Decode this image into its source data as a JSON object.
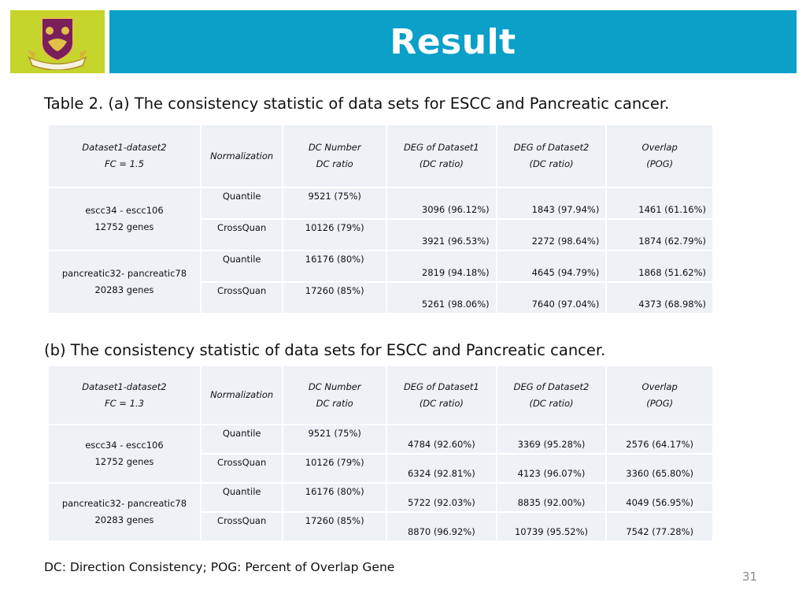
{
  "slide": {
    "title": "Result",
    "page_number": "31",
    "logo": {
      "icon": "university-crest-icon",
      "bg_color": "#c5d52b"
    },
    "title_bar_color": "#0aa0c8"
  },
  "table_a": {
    "caption": "Table 2. (a) The consistency statistic of data sets for ESCC and Pancreatic cancer.",
    "headers": [
      {
        "line1": "Dataset1-dataset2",
        "line2": "FC = 1.5"
      },
      {
        "line1": "Normalization",
        "line2": ""
      },
      {
        "line1": "DC Number",
        "line2": "DC ratio"
      },
      {
        "line1": "DEG of Dataset1",
        "line2": "(DC ratio)"
      },
      {
        "line1": "DEG of Dataset2",
        "line2": "(DC ratio)"
      },
      {
        "line1": "Overlap",
        "line2": "(POG)"
      }
    ],
    "groups": [
      {
        "dataset_line1": "escc34 - escc106",
        "dataset_line2": "12752 genes",
        "rows": [
          {
            "normalization": "Quantile",
            "dc": "9521 (75%)",
            "deg1": "3096 (96.12%)",
            "deg2": "1843 (97.94%)",
            "overlap": "1461 (61.16%)"
          },
          {
            "normalization": "CrossQuan",
            "dc": "10126 (79%)",
            "deg1": "3921 (96.53%)",
            "deg2": "2272 (98.64%)",
            "overlap": "1874 (62.79%)"
          }
        ]
      },
      {
        "dataset_line1": "pancreatic32- pancreatic78",
        "dataset_line2": "20283 genes",
        "rows": [
          {
            "normalization": "Quantile",
            "dc": "16176 (80%)",
            "deg1": "2819 (94.18%)",
            "deg2": "4645 (94.79%)",
            "overlap": "1868 (51.62%)"
          },
          {
            "normalization": "CrossQuan",
            "dc": "17260 (85%)",
            "deg1": "5261 (98.06%)",
            "deg2": "7640 (97.04%)",
            "overlap": "4373 (68.98%)"
          }
        ]
      }
    ]
  },
  "table_b": {
    "caption": "(b) The consistency statistic of data sets for ESCC and Pancreatic cancer.",
    "headers": [
      {
        "line1": "Dataset1-dataset2",
        "line2": "FC = 1.3"
      },
      {
        "line1": "Normalization",
        "line2": ""
      },
      {
        "line1": "DC Number",
        "line2": "DC ratio"
      },
      {
        "line1": "DEG of Dataset1",
        "line2": "(DC ratio)"
      },
      {
        "line1": "DEG of Dataset2",
        "line2": "(DC ratio)"
      },
      {
        "line1": "Overlap",
        "line2": "(POG)"
      }
    ],
    "groups": [
      {
        "dataset_line1": "escc34 - escc106",
        "dataset_line2": "12752 genes",
        "rows": [
          {
            "normalization": "Quantile",
            "dc": "9521 (75%)",
            "deg1": "4784 (92.60%)",
            "deg2": "3369 (95.28%)",
            "overlap": "2576 (64.17%)"
          },
          {
            "normalization": "CrossQuan",
            "dc": "10126 (79%)",
            "deg1": "6324 (92.81%)",
            "deg2": "4123 (96.07%)",
            "overlap": "3360 (65.80%)"
          }
        ]
      },
      {
        "dataset_line1": "pancreatic32- pancreatic78",
        "dataset_line2": "20283 genes",
        "rows": [
          {
            "normalization": "Quantile",
            "dc": "16176 (80%)",
            "deg1": "5722 (92.03%)",
            "deg2": "8835 (92.00%)",
            "overlap": "4049 (56.95%)"
          },
          {
            "normalization": "CrossQuan",
            "dc": "17260 (85%)",
            "deg1": "8870 (96.92%)",
            "deg2": "10739 (95.52%)",
            "overlap": "7542 (77.28%)"
          }
        ]
      }
    ]
  },
  "footnote": "DC: Direction Consistency;  POG: Percent of Overlap Gene"
}
